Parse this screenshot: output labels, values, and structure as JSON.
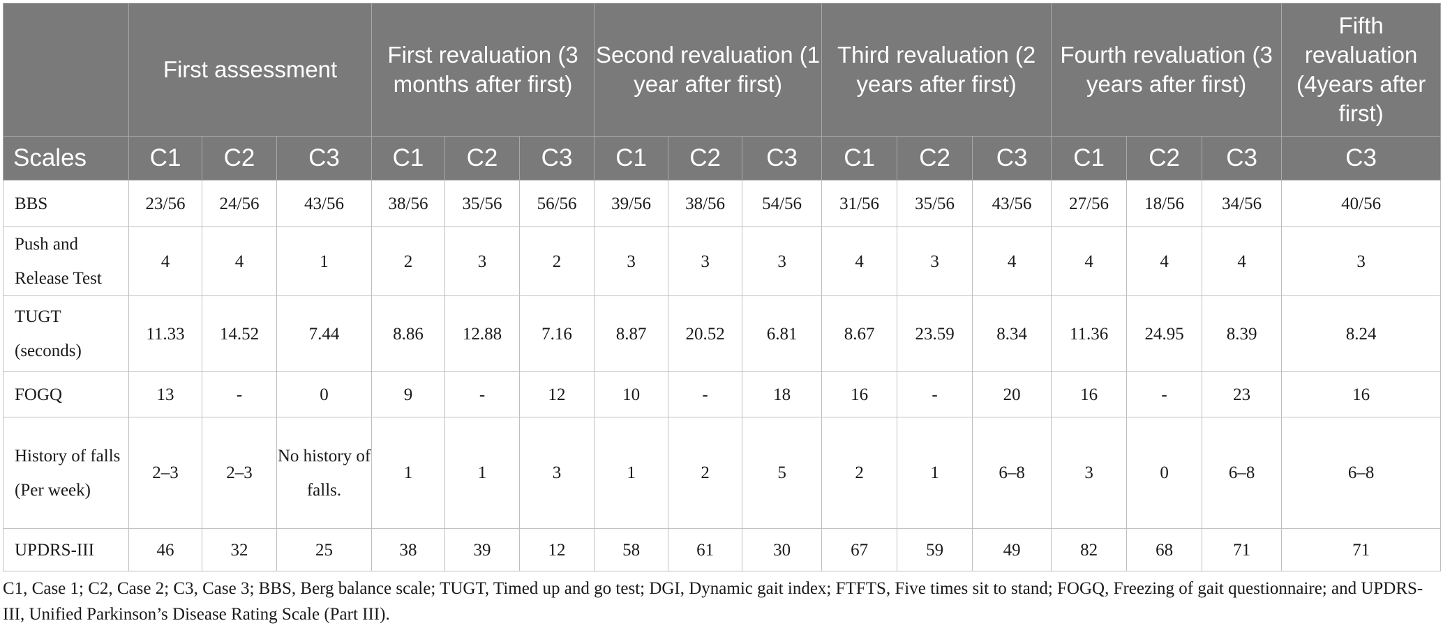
{
  "table": {
    "group_headers": [
      "First assessment",
      "First revaluation (3 months after first)",
      "Second revaluation (1 year after first)",
      "Third revaluation (2 years after first)",
      "Fourth revaluation (3 years after first)",
      "Fifth revaluation (4years after first)"
    ],
    "sub_headers": [
      "Scales",
      "C1",
      "C2",
      "C3",
      "C1",
      "C2",
      "C3",
      "C1",
      "C2",
      "C3",
      "C1",
      "C2",
      "C3",
      "C1",
      "C2",
      "C3",
      "C3"
    ],
    "rows": [
      {
        "label": "BBS",
        "values": [
          "23/56",
          "24/56",
          "43/56",
          "38/56",
          "35/56",
          "56/56",
          "39/56",
          "38/56",
          "54/56",
          "31/56",
          "35/56",
          "43/56",
          "27/56",
          "18/56",
          "34/56",
          "40/56"
        ]
      },
      {
        "label": "Push and Release Test",
        "values": [
          "4",
          "4",
          "1",
          "2",
          "3",
          "2",
          "3",
          "3",
          "3",
          "4",
          "3",
          "4",
          "4",
          "4",
          "4",
          "3"
        ]
      },
      {
        "label": "TUGT (seconds)",
        "values": [
          "11.33",
          "14.52",
          "7.44",
          "8.86",
          "12.88",
          "7.16",
          "8.87",
          "20.52",
          "6.81",
          "8.67",
          "23.59",
          "8.34",
          "11.36",
          "24.95",
          "8.39",
          "8.24"
        ]
      },
      {
        "label": "FOGQ",
        "values": [
          "13",
          "-",
          "0",
          "9",
          "-",
          "12",
          "10",
          "-",
          "18",
          "16",
          "-",
          "20",
          "16",
          "-",
          "23",
          "16"
        ]
      },
      {
        "label": "History of falls (Per week)",
        "values": [
          "2–3",
          "2–3",
          "No history of falls.",
          "1",
          "1",
          "3",
          "1",
          "2",
          "5",
          "2",
          "1",
          "6–8",
          "3",
          "0",
          "6–8",
          "6–8"
        ]
      },
      {
        "label": "UPDRS-III",
        "values": [
          "46",
          "32",
          "25",
          "38",
          "39",
          "12",
          "58",
          "61",
          "30",
          "67",
          "59",
          "49",
          "82",
          "68",
          "71",
          "71"
        ]
      }
    ]
  },
  "footnote": "C1, Case 1; C2, Case 2; C3, Case 3; BBS, Berg balance scale; TUGT, Timed up and go test; DGI, Dynamic gait index; FTFTS, Five times sit to stand; FOGQ, Freezing of gait questionnaire; and UPDRS-III, Unified Parkinson’s Disease Rating Scale (Part III)."
}
